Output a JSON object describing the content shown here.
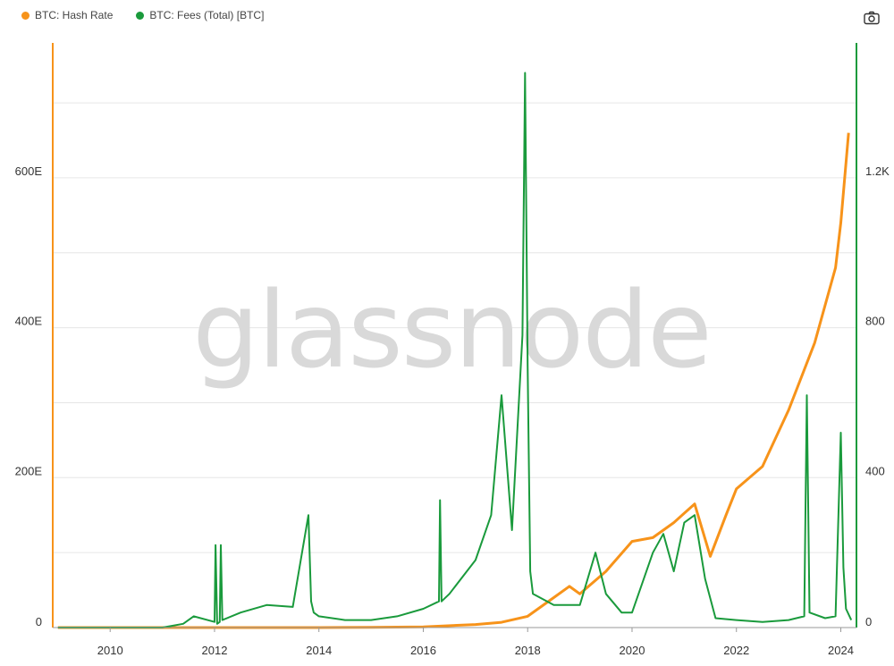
{
  "legend": {
    "hash_rate": "BTC: Hash Rate",
    "fees": "BTC: Fees (Total) [BTC]"
  },
  "watermark": "glassnode",
  "colors": {
    "hash_rate": "#f7931a",
    "fees": "#1a9a3c",
    "grid": "#e6e6e6"
  },
  "icons": {
    "camera": "camera-icon"
  },
  "chart_data": {
    "type": "line",
    "x_ticks": [
      "2010",
      "2012",
      "2014",
      "2016",
      "2018",
      "2020",
      "2022",
      "2024"
    ],
    "y_left_ticks": [
      "0",
      "200E",
      "400E",
      "600E"
    ],
    "y_right_ticks": [
      "0",
      "400",
      "800",
      "1.2K"
    ],
    "xlim": [
      2008.9,
      2024.3
    ],
    "ylim_left": [
      0,
      780
    ],
    "ylim_right": [
      0,
      1560
    ],
    "grid": true,
    "legend_position": "top-left",
    "series": [
      {
        "name": "BTC: Hash Rate",
        "axis": "left",
        "unit": "EH/s",
        "x": [
          2009.0,
          2011.0,
          2012.0,
          2013.0,
          2014.0,
          2015.0,
          2016.0,
          2017.0,
          2017.5,
          2018.0,
          2018.5,
          2018.8,
          2019.0,
          2019.5,
          2020.0,
          2020.4,
          2020.8,
          2021.2,
          2021.5,
          2021.8,
          2022.0,
          2022.5,
          2023.0,
          2023.5,
          2023.9,
          2024.0,
          2024.15
        ],
        "y": [
          0,
          0,
          0,
          0,
          0,
          0.3,
          1,
          4,
          7,
          15,
          40,
          55,
          45,
          75,
          115,
          120,
          140,
          165,
          95,
          150,
          185,
          215,
          290,
          380,
          480,
          540,
          660
        ]
      },
      {
        "name": "BTC: Fees (Total) [BTC]",
        "axis": "right",
        "unit": "BTC",
        "x": [
          2009.0,
          2011.0,
          2011.4,
          2011.6,
          2012.0,
          2012.02,
          2012.05,
          2012.1,
          2012.12,
          2012.15,
          2012.5,
          2013.0,
          2013.5,
          2013.8,
          2013.85,
          2013.9,
          2014.0,
          2014.5,
          2015.0,
          2015.5,
          2016.0,
          2016.3,
          2016.32,
          2016.35,
          2016.5,
          2017.0,
          2017.3,
          2017.5,
          2017.7,
          2017.9,
          2017.95,
          2018.0,
          2018.05,
          2018.1,
          2018.5,
          2019.0,
          2019.3,
          2019.5,
          2019.8,
          2020.0,
          2020.4,
          2020.6,
          2020.8,
          2021.0,
          2021.2,
          2021.4,
          2021.6,
          2022.0,
          2022.5,
          2023.0,
          2023.3,
          2023.35,
          2023.4,
          2023.7,
          2023.9,
          2024.0,
          2024.05,
          2024.1,
          2024.2
        ],
        "y": [
          0,
          0,
          10,
          30,
          15,
          220,
          10,
          15,
          220,
          20,
          40,
          60,
          55,
          300,
          70,
          40,
          30,
          20,
          20,
          30,
          50,
          70,
          340,
          70,
          90,
          180,
          300,
          620,
          260,
          780,
          1480,
          700,
          150,
          90,
          60,
          60,
          200,
          90,
          40,
          40,
          200,
          250,
          150,
          280,
          300,
          130,
          25,
          20,
          15,
          20,
          30,
          620,
          40,
          25,
          30,
          520,
          160,
          50,
          20
        ]
      }
    ]
  }
}
